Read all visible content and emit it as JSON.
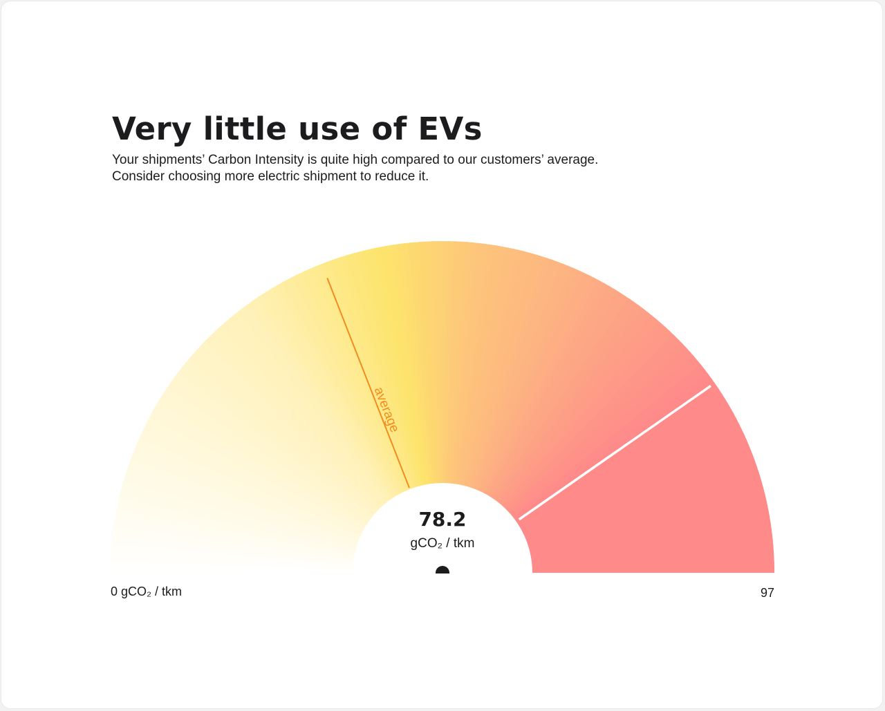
{
  "title": "Very little use of EVs",
  "subtitle": [
    "Your shipments’ Carbon Intensity is quite high compared to our customers’ average.",
    "Consider choosing more electric shipment to reduce it."
  ],
  "colors": {
    "background": "#ffffff",
    "text": "#1c1c1e",
    "gauge_light": "#fffbea",
    "gauge_yellow": "#fde46c",
    "gauge_orange": "#fdb482",
    "gauge_red": "#fe8a8a",
    "average_marker": "#f28c1e",
    "value_marker": "#ffffff",
    "needle_pivot": "#1c1c1e"
  },
  "chart_data": {
    "type": "gauge",
    "value": 78.2,
    "value_label": "78.2",
    "unit": "gCO₂ / tkm",
    "min": 0,
    "max": 97,
    "min_label": "0 gCO₂ / tkm",
    "max_label": "97",
    "average": 37,
    "average_label": "average"
  }
}
